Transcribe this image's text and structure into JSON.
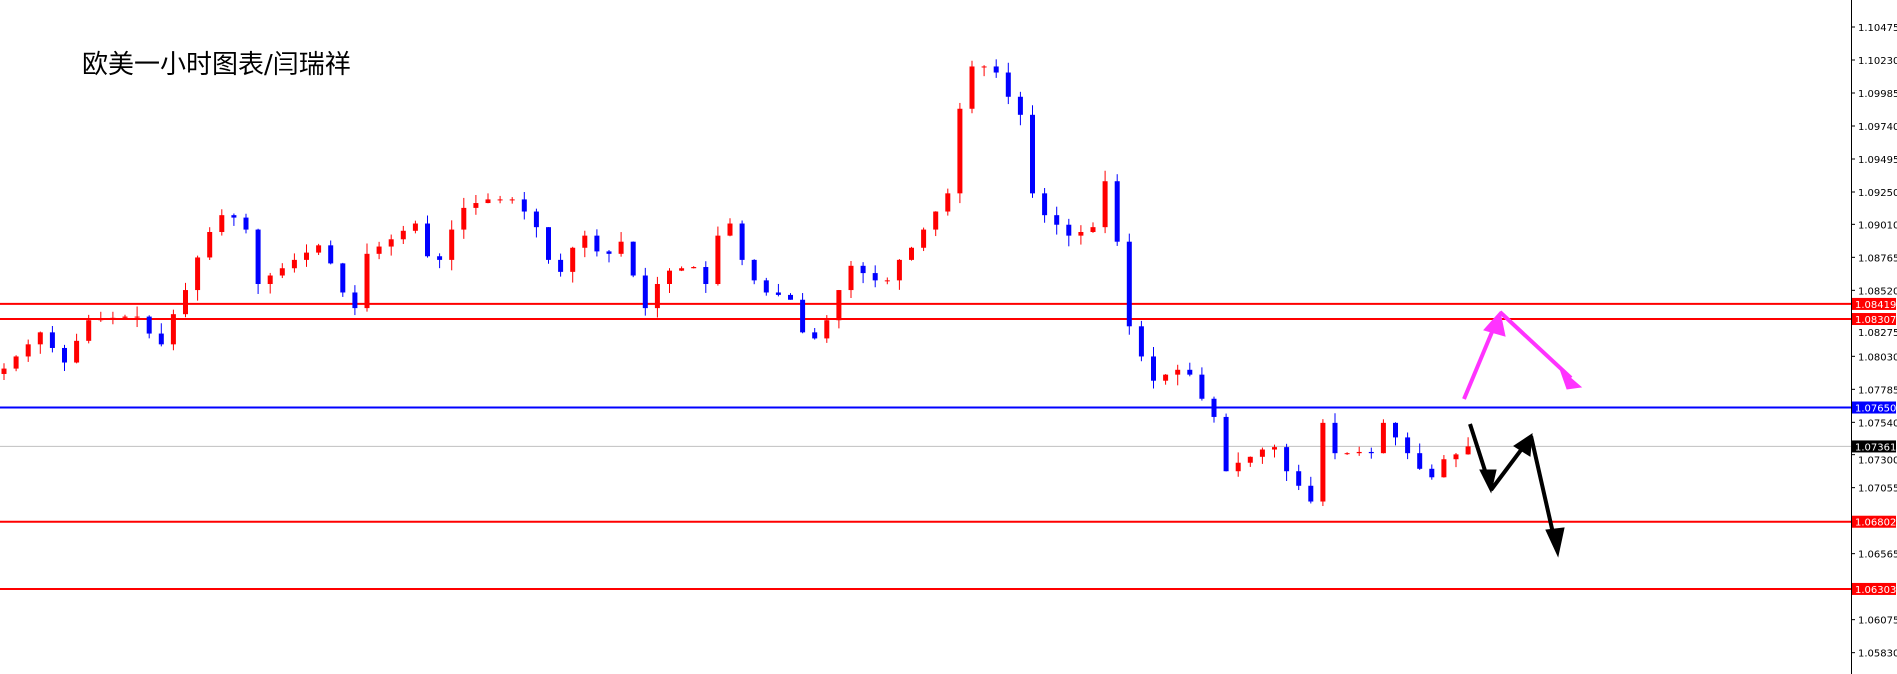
{
  "title": "欧美一小时图表/闫瑞祥",
  "chart_data": {
    "type": "candlestick",
    "title": "欧美一小时图表/闫瑞祥",
    "ylim": [
      1.057,
      1.106
    ],
    "y_ticks": [
      "1.10475",
      "1.10230",
      "1.09985",
      "1.09740",
      "1.09495",
      "1.09250",
      "1.09010",
      "1.08765",
      "1.08520",
      "1.08275",
      "1.08030",
      "1.07785",
      "1.07540",
      "1.07300",
      "1.07055",
      "1.06565",
      "1.06075",
      "1.05830"
    ],
    "colors": {
      "up": "#ff0000",
      "down": "#0000ff",
      "background": "#ffffff"
    },
    "closes": [
      1.07939,
      1.08029,
      1.08119,
      1.08208,
      1.08092,
      1.07984,
      1.08145,
      1.08298,
      1.08307,
      1.08316,
      1.08325,
      1.08325,
      1.08199,
      1.08119,
      1.08343,
      1.08522,
      1.08764,
      1.08953,
      1.09078,
      1.0906,
      1.08971,
      1.08567,
      1.0863,
      1.08684,
      1.08746,
      1.088,
      1.08854,
      1.0872,
      1.08504,
      1.08388,
      1.08791,
      1.08845,
      1.08899,
      1.08962,
      1.09016,
      1.08773,
      1.08746,
      1.08971,
      1.09132,
      1.09168,
      1.09195,
      1.09195,
      1.09195,
      1.09105,
      1.08989,
      1.08746,
      1.08657,
      1.08836,
      1.08926,
      1.08809,
      1.08791,
      1.08881,
      1.0863,
      1.08388,
      1.08567,
      1.08666,
      1.08684,
      1.08693,
      1.08567,
      1.08926,
      1.09016,
      1.08746,
      1.08594,
      1.08504,
      1.08486,
      1.0845,
      1.08208,
      1.08163,
      1.08298,
      1.08522,
      1.08702,
      1.08648,
      1.08594,
      1.08594,
      1.08746,
      1.08836,
      1.08971,
      1.09105,
      1.0924,
      1.09868,
      1.10182,
      1.10182,
      1.10137,
      1.09957,
      1.09823,
      1.0924,
      1.09078,
      1.09007,
      1.08926,
      1.08953,
      1.08989,
      1.0933,
      1.08881,
      1.08253,
      1.08029,
      1.07849,
      1.07894,
      1.0793,
      1.07894,
      1.07715,
      1.0758,
      1.07177,
      1.0724,
      1.07284,
      1.07338,
      1.07356,
      1.07177,
      1.07069,
      1.06952,
      1.07536,
      1.07311,
      1.07311,
      1.0732,
      1.07311,
      1.07536,
      1.07428,
      1.07311,
      1.07195,
      1.07132,
      1.07266,
      1.07302,
      1.07361
    ],
    "horizontal_lines": [
      {
        "price": "1.08419",
        "color": "#ff0000"
      },
      {
        "price": "1.08307",
        "color": "#ff0000"
      },
      {
        "price": "1.07650",
        "color": "#0000ff"
      },
      {
        "price": "1.06802",
        "color": "#ff0000"
      },
      {
        "price": "1.06303",
        "color": "#ff0000"
      }
    ],
    "current_price": {
      "price": "1.07361",
      "color": "#000000"
    },
    "annotations": [
      {
        "type": "arrow-path",
        "color": "#ff33ff"
      },
      {
        "type": "arrow-path",
        "color": "#000000"
      }
    ]
  }
}
